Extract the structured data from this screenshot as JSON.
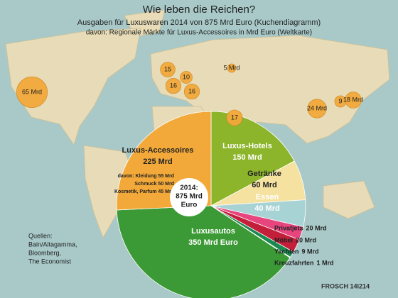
{
  "chart_data": [
    {
      "type": "pie",
      "title": "Wie leben die Reichen?",
      "subtitle": "Ausgaben für Luxuswaren 2014 von 875 Mrd Euro (Kuchendiagramm)",
      "categories": [
        "Luxus-Hotels",
        "Getränke",
        "Essen",
        "Privatjets",
        "Möbel",
        "Yachten",
        "Kreuzfahrten",
        "Luxusautos",
        "Luxus-Accessoires"
      ],
      "values": [
        150,
        60,
        40,
        20,
        20,
        9,
        1,
        350,
        225
      ],
      "value_labels": [
        "150 Mrd",
        "60 Mrd",
        "40 Mrd",
        "20 Mrd",
        "20 Mrd",
        "9 Mrd",
        "1 Mrd",
        "350 Mrd Euro",
        "225 Mrd"
      ],
      "colors": [
        "#8db52b",
        "#f5e2a0",
        "#a8d3d5",
        "#e6457d",
        "#c31f3a",
        "#1a8a52",
        "#d9ca6b",
        "#3b9a35",
        "#f2a93a"
      ],
      "center_label": [
        "2014:",
        "875 Mrd",
        "Euro"
      ],
      "accessories_breakdown": [
        "davon: Kleidung 55 Mrd",
        "Schmuck 50 Mrd",
        "Kosmetik, Parfum 45 Mrd"
      ]
    },
    {
      "type": "bubble",
      "subtitle": "davon: Regionale Märkte für Luxus-Accessoires in Mrd Euro (Weltkarte)",
      "values": [
        65,
        15,
        10,
        16,
        16,
        5,
        17,
        24,
        9,
        18
      ],
      "value_labels": [
        "65 Mrd",
        "15",
        "10",
        "16",
        "16",
        "5 Mrd",
        "17",
        "24 Mrd",
        "9",
        "18 Mrd"
      ],
      "color": "#f2a93a"
    }
  ],
  "source": [
    "Quellen:",
    "Bain/Altagamma,",
    "Bloomberg,",
    "The Economist"
  ],
  "signature": "FROSCH 14I214"
}
